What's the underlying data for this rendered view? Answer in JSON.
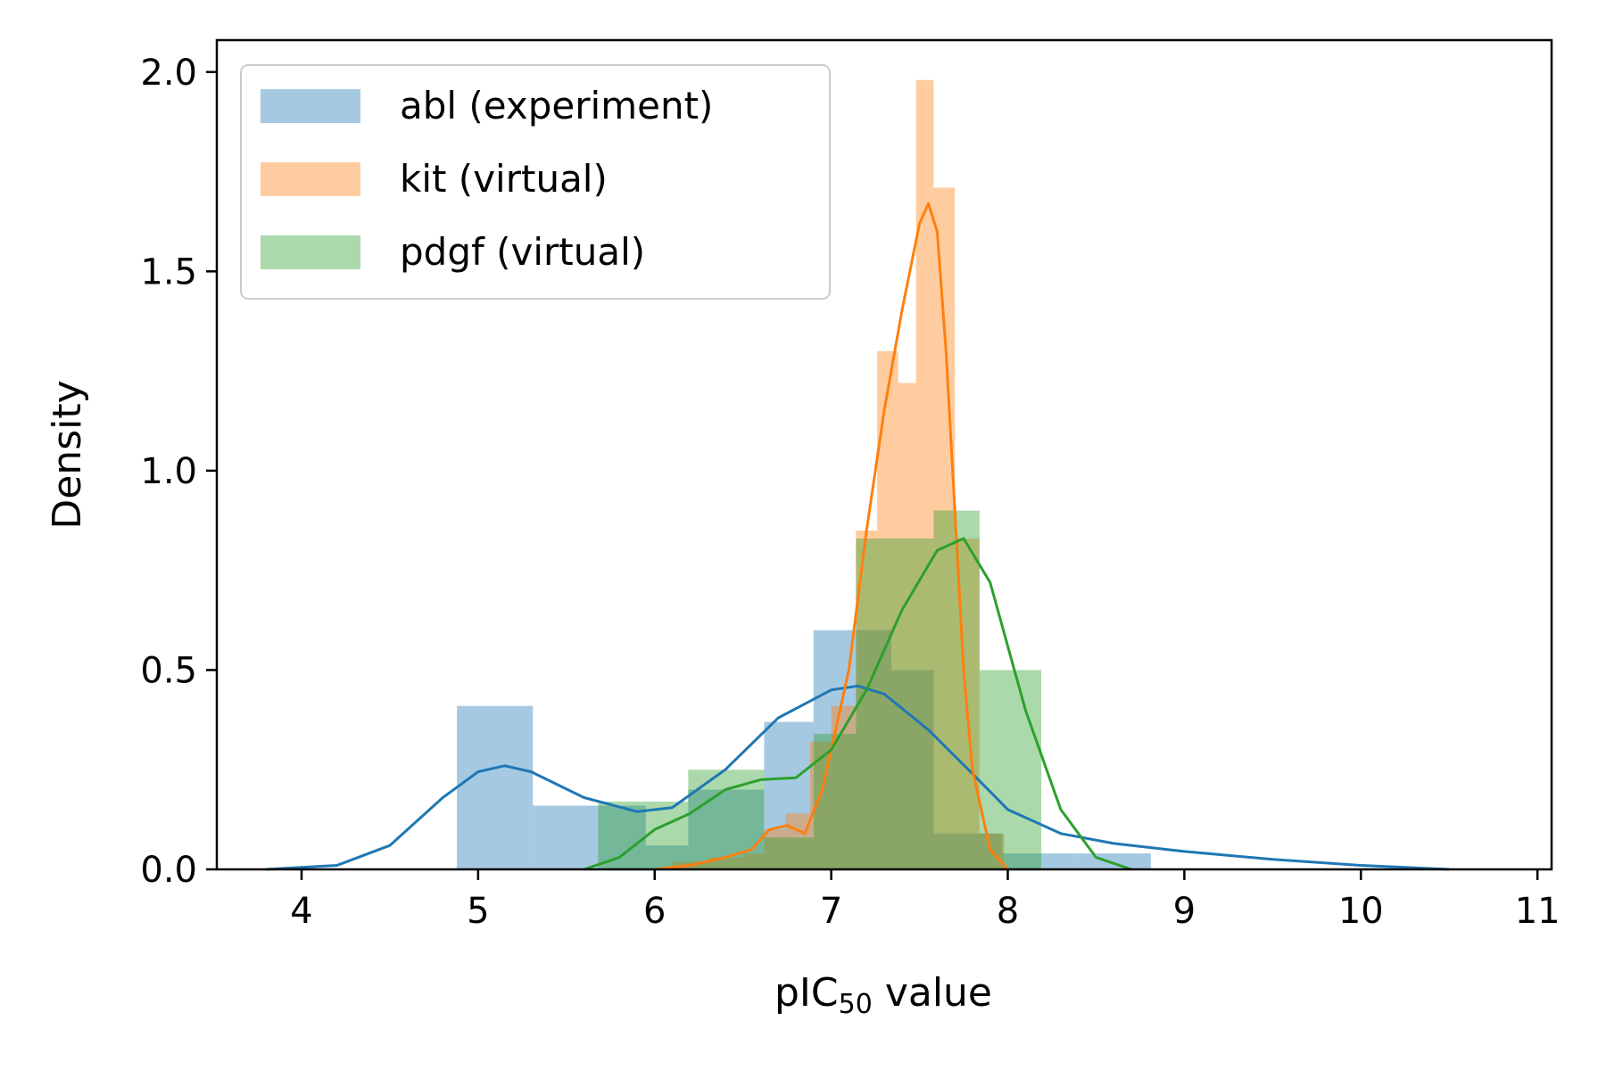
{
  "chart_data": {
    "type": "histogram",
    "xlabel": "pIC",
    "xlabel_subscript": "50",
    "xlabel_suffix": " value",
    "ylabel": "Density",
    "xlim": [
      3.52,
      11.08
    ],
    "ylim": [
      0.0,
      2.08
    ],
    "xticks": [
      4,
      5,
      6,
      7,
      8,
      9,
      10,
      11
    ],
    "yticks": [
      0.0,
      0.5,
      1.0,
      1.5,
      2.0
    ],
    "ytick_labels": [
      "0.0",
      "0.5",
      "1.0",
      "1.5",
      "2.0"
    ],
    "legend_position": "top-left",
    "series": [
      {
        "name": "abl (experiment)",
        "color": "#1f77b4",
        "bins": [
          {
            "x0": 4.88,
            "x1": 5.31,
            "y": 0.41
          },
          {
            "x0": 5.31,
            "x1": 5.95,
            "y": 0.16
          },
          {
            "x0": 5.95,
            "x1": 6.19,
            "y": 0.06
          },
          {
            "x0": 6.19,
            "x1": 6.62,
            "y": 0.2
          },
          {
            "x0": 6.62,
            "x1": 6.9,
            "y": 0.37
          },
          {
            "x0": 6.9,
            "x1": 7.14,
            "y": 0.6
          },
          {
            "x0": 7.14,
            "x1": 7.34,
            "y": 0.6
          },
          {
            "x0": 7.34,
            "x1": 7.58,
            "y": 0.5
          },
          {
            "x0": 7.58,
            "x1": 7.97,
            "y": 0.09
          },
          {
            "x0": 7.97,
            "x1": 8.39,
            "y": 0.04
          },
          {
            "x0": 8.39,
            "x1": 8.81,
            "y": 0.04
          }
        ],
        "kde": [
          [
            3.8,
            0.0
          ],
          [
            4.2,
            0.01
          ],
          [
            4.5,
            0.06
          ],
          [
            4.8,
            0.18
          ],
          [
            5.0,
            0.245
          ],
          [
            5.15,
            0.26
          ],
          [
            5.3,
            0.245
          ],
          [
            5.6,
            0.18
          ],
          [
            5.9,
            0.145
          ],
          [
            6.1,
            0.155
          ],
          [
            6.4,
            0.25
          ],
          [
            6.7,
            0.38
          ],
          [
            7.0,
            0.45
          ],
          [
            7.15,
            0.46
          ],
          [
            7.3,
            0.44
          ],
          [
            7.55,
            0.35
          ],
          [
            7.8,
            0.24
          ],
          [
            8.0,
            0.15
          ],
          [
            8.3,
            0.09
          ],
          [
            8.6,
            0.065
          ],
          [
            9.0,
            0.045
          ],
          [
            9.5,
            0.025
          ],
          [
            10.0,
            0.01
          ],
          [
            10.5,
            0.0
          ]
        ]
      },
      {
        "name": "kit (virtual)",
        "color": "#ff7f0e",
        "bins": [
          {
            "x0": 6.1,
            "x1": 6.3,
            "y": 0.02
          },
          {
            "x0": 6.3,
            "x1": 6.5,
            "y": 0.03
          },
          {
            "x0": 6.5,
            "x1": 6.62,
            "y": 0.04
          },
          {
            "x0": 6.62,
            "x1": 6.74,
            "y": 0.1
          },
          {
            "x0": 6.74,
            "x1": 6.88,
            "y": 0.14
          },
          {
            "x0": 6.88,
            "x1": 7.0,
            "y": 0.32
          },
          {
            "x0": 7.0,
            "x1": 7.14,
            "y": 0.41
          },
          {
            "x0": 7.14,
            "x1": 7.26,
            "y": 0.85
          },
          {
            "x0": 7.26,
            "x1": 7.38,
            "y": 1.3
          },
          {
            "x0": 7.38,
            "x1": 7.48,
            "y": 1.22
          },
          {
            "x0": 7.48,
            "x1": 7.58,
            "y": 1.98
          },
          {
            "x0": 7.58,
            "x1": 7.7,
            "y": 1.71
          },
          {
            "x0": 7.7,
            "x1": 7.84,
            "y": 0.83
          },
          {
            "x0": 7.84,
            "x1": 7.98,
            "y": 0.09
          }
        ],
        "kde": [
          [
            6.0,
            0.0
          ],
          [
            6.2,
            0.01
          ],
          [
            6.4,
            0.03
          ],
          [
            6.55,
            0.05
          ],
          [
            6.65,
            0.1
          ],
          [
            6.75,
            0.11
          ],
          [
            6.85,
            0.09
          ],
          [
            6.95,
            0.2
          ],
          [
            7.1,
            0.5
          ],
          [
            7.2,
            0.85
          ],
          [
            7.3,
            1.15
          ],
          [
            7.4,
            1.4
          ],
          [
            7.5,
            1.62
          ],
          [
            7.55,
            1.67
          ],
          [
            7.6,
            1.6
          ],
          [
            7.65,
            1.3
          ],
          [
            7.7,
            0.9
          ],
          [
            7.75,
            0.5
          ],
          [
            7.8,
            0.25
          ],
          [
            7.9,
            0.05
          ],
          [
            8.0,
            0.0
          ]
        ]
      },
      {
        "name": "pdgf (virtual)",
        "color": "#2ca02c",
        "bins": [
          {
            "x0": 5.68,
            "x1": 6.19,
            "y": 0.17
          },
          {
            "x0": 6.19,
            "x1": 6.62,
            "y": 0.25
          },
          {
            "x0": 6.62,
            "x1": 6.9,
            "y": 0.08
          },
          {
            "x0": 6.9,
            "x1": 7.14,
            "y": 0.34
          },
          {
            "x0": 7.14,
            "x1": 7.58,
            "y": 0.83
          },
          {
            "x0": 7.58,
            "x1": 7.84,
            "y": 0.9
          },
          {
            "x0": 7.84,
            "x1": 8.19,
            "y": 0.5
          }
        ],
        "kde": [
          [
            5.6,
            0.0
          ],
          [
            5.8,
            0.03
          ],
          [
            6.0,
            0.1
          ],
          [
            6.2,
            0.14
          ],
          [
            6.4,
            0.2
          ],
          [
            6.6,
            0.225
          ],
          [
            6.8,
            0.23
          ],
          [
            7.0,
            0.3
          ],
          [
            7.2,
            0.45
          ],
          [
            7.4,
            0.65
          ],
          [
            7.6,
            0.8
          ],
          [
            7.75,
            0.83
          ],
          [
            7.9,
            0.72
          ],
          [
            8.1,
            0.4
          ],
          [
            8.3,
            0.15
          ],
          [
            8.5,
            0.03
          ],
          [
            8.7,
            0.0
          ]
        ]
      }
    ]
  }
}
